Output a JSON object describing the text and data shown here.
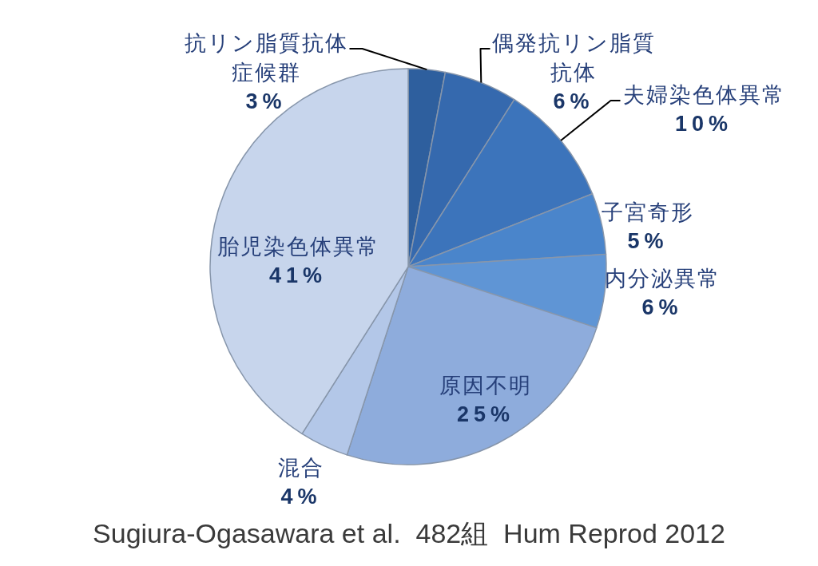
{
  "chart_data": {
    "type": "pie",
    "categories": [
      "抗リン脂質抗体症候群",
      "偶発抗リン脂質抗体",
      "夫婦染色体異常",
      "子宮奇形",
      "内分泌異常",
      "原因不明",
      "混合",
      "胎児染色体異常"
    ],
    "values": [
      3,
      6,
      10,
      5,
      6,
      25,
      4,
      41
    ],
    "colors": [
      "#2e5f9e",
      "#3569ae",
      "#3c74bb",
      "#4a85cb",
      "#5f95d5",
      "#8eacdc",
      "#b3c7e8",
      "#c7d5ec"
    ],
    "value_labels": [
      "3%",
      "6%",
      "10%",
      "5%",
      "6%",
      "25%",
      "4%",
      "41%"
    ],
    "annotations": [
      "Sugiura-Ogasawara et al.  482組  Hum Reprod 2012"
    ]
  }
}
